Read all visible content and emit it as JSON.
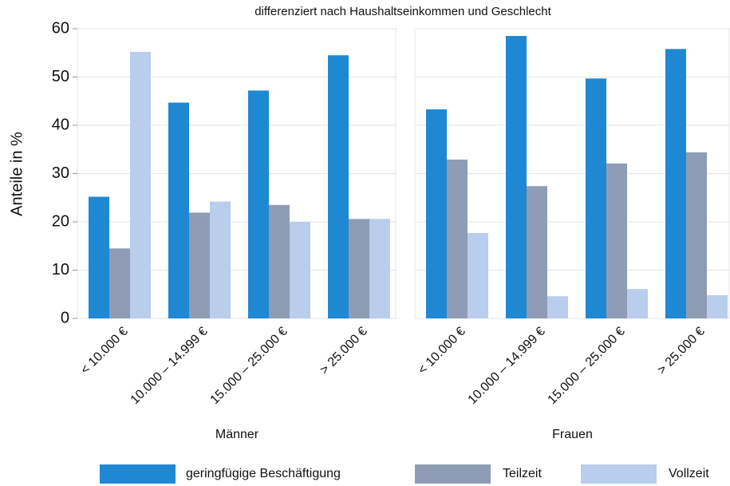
{
  "chart_data": [
    {
      "type": "bar",
      "title": "differenziert nach Haushaltseinkommen und Geschlecht",
      "ylabel": "Anteile in %",
      "xlabel": "Männer",
      "categories": [
        "< 10.000 €",
        "10.000 – 14.999 €",
        "15.000 – 25.000 €",
        "> 25.000 €"
      ],
      "series": [
        {
          "name": "geringfügige Beschäftigung",
          "color": "#1f88d2",
          "values": [
            25.2,
            44.7,
            47.2,
            54.5
          ]
        },
        {
          "name": "Teilzeit",
          "color": "#8e9db5",
          "values": [
            14.5,
            21.9,
            23.5,
            20.6
          ]
        },
        {
          "name": "Vollzeit",
          "color": "#b9cdec",
          "values": [
            55.2,
            24.2,
            20.0,
            20.6
          ]
        }
      ],
      "ylim": [
        0,
        60
      ],
      "yticks": [
        0,
        10,
        20,
        30,
        40,
        50,
        60
      ],
      "grid": true,
      "legend": "bottom"
    },
    {
      "type": "bar",
      "xlabel": "Frauen",
      "categories": [
        "< 10.000 €",
        "10.000 – 14.999 €",
        "15.000 – 25.000 €",
        "> 25.000 €"
      ],
      "series": [
        {
          "color": "#1f88d2",
          "values": [
            43.3,
            58.5,
            49.7,
            55.8
          ]
        },
        {
          "color": "#8e9db5",
          "values": [
            32.9,
            27.4,
            32.1,
            34.4
          ]
        },
        {
          "color": "#b9cdec",
          "values": [
            17.7,
            4.6,
            6.1,
            4.8
          ]
        }
      ],
      "ylim": [
        0,
        60
      ],
      "yticks": [
        0,
        10,
        20,
        30,
        40,
        50,
        60
      ],
      "grid": true
    }
  ]
}
